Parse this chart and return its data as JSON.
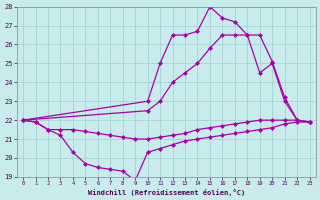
{
  "xlabel": "Windchill (Refroidissement éolien,°C)",
  "bg_color": "#c8ecec",
  "line_color": "#aa00aa",
  "xlim": [
    -0.5,
    23.5
  ],
  "ylim": [
    19,
    28
  ],
  "xticks": [
    0,
    1,
    2,
    3,
    4,
    5,
    6,
    7,
    8,
    9,
    10,
    11,
    12,
    13,
    14,
    15,
    16,
    17,
    18,
    19,
    20,
    21,
    22,
    23
  ],
  "yticks": [
    19,
    20,
    21,
    22,
    23,
    24,
    25,
    26,
    27,
    28
  ],
  "lines": [
    {
      "x": [
        0,
        1,
        2,
        3,
        4,
        5,
        6,
        7,
        8,
        9,
        10,
        11,
        12,
        13,
        14,
        15,
        16,
        17,
        18,
        19,
        20,
        21,
        22,
        23
      ],
      "y": [
        22,
        21.9,
        21.5,
        21.2,
        20.3,
        19.7,
        19.5,
        19.4,
        19.3,
        18.8,
        20.3,
        20.5,
        20.7,
        20.9,
        21.0,
        21.1,
        21.2,
        21.3,
        21.4,
        21.5,
        21.6,
        21.8,
        21.9,
        21.9
      ]
    },
    {
      "x": [
        0,
        1,
        2,
        3,
        4,
        5,
        6,
        7,
        8,
        9,
        10,
        11,
        12,
        13,
        14,
        15,
        16,
        17,
        18,
        19,
        20,
        21,
        22,
        23
      ],
      "y": [
        22,
        21.9,
        21.5,
        21.5,
        21.5,
        21.4,
        21.3,
        21.2,
        21.1,
        21.0,
        21.0,
        21.1,
        21.2,
        21.3,
        21.5,
        21.6,
        21.7,
        21.8,
        21.9,
        22.0,
        22.0,
        22.0,
        22.0,
        21.9
      ]
    },
    {
      "x": [
        0,
        10,
        11,
        12,
        13,
        14,
        15,
        16,
        17,
        18,
        19,
        20,
        21,
        22,
        23
      ],
      "y": [
        22,
        23.0,
        25.0,
        26.5,
        26.5,
        26.7,
        28.0,
        27.4,
        27.2,
        26.5,
        26.5,
        25.1,
        23.2,
        22.0,
        21.9
      ]
    },
    {
      "x": [
        0,
        10,
        11,
        12,
        13,
        14,
        15,
        16,
        17,
        18,
        19,
        20,
        21,
        22,
        23
      ],
      "y": [
        22,
        22.5,
        23.0,
        24.0,
        24.5,
        25.0,
        25.8,
        26.5,
        26.5,
        26.5,
        24.5,
        25.0,
        23.0,
        22.0,
        21.9
      ]
    }
  ],
  "marker": "D",
  "markersize": 2,
  "linewidth": 0.9
}
